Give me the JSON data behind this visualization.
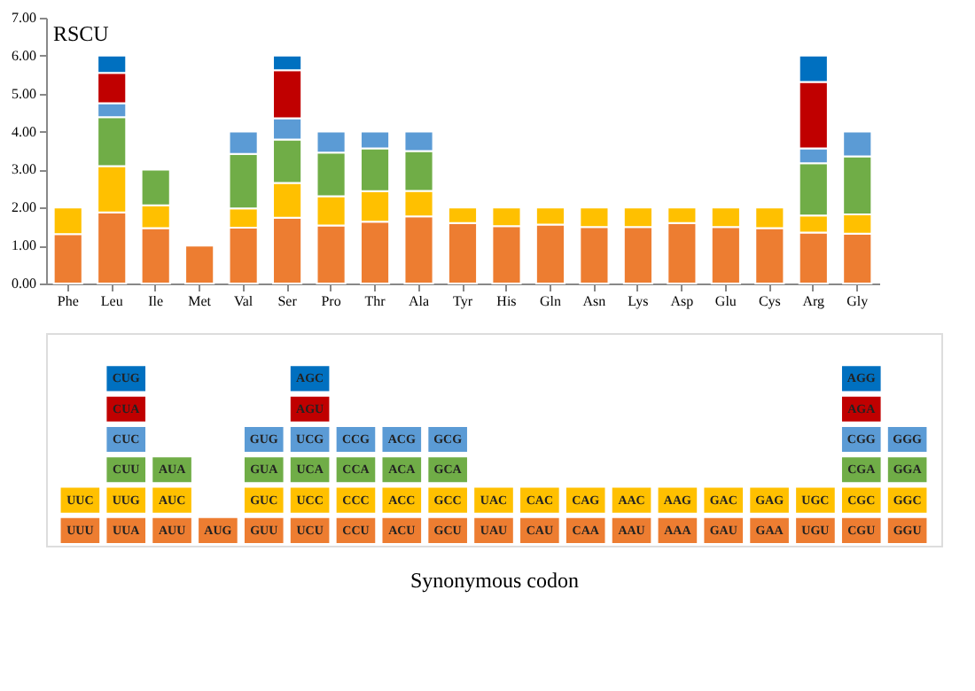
{
  "chart_data": [
    {
      "type": "bar",
      "stacked": true,
      "ylabel": "RSCU",
      "categories": [
        "Phe",
        "Leu",
        "Ile",
        "Met",
        "Val",
        "Ser",
        "Pro",
        "Thr",
        "Ala",
        "Tyr",
        "His",
        "Gln",
        "Asn",
        "Lys",
        "Asp",
        "Glu",
        "Cys",
        "Arg",
        "Gly"
      ],
      "series": [
        {
          "color": "#ed7d31",
          "values": [
            1.3,
            1.87,
            1.46,
            1.0,
            1.47,
            1.73,
            1.53,
            1.63,
            1.77,
            1.59,
            1.51,
            1.55,
            1.49,
            1.49,
            1.59,
            1.49,
            1.46,
            1.34,
            1.31
          ]
        },
        {
          "color": "#ffc000",
          "values": [
            0.7,
            1.22,
            0.6,
            null,
            0.51,
            0.92,
            0.77,
            0.8,
            0.67,
            0.41,
            0.49,
            0.45,
            0.51,
            0.51,
            0.41,
            0.51,
            0.54,
            0.45,
            0.51
          ]
        },
        {
          "color": "#70ad47",
          "values": [
            null,
            1.29,
            0.94,
            null,
            1.43,
            1.14,
            1.15,
            1.13,
            1.05,
            null,
            null,
            null,
            null,
            null,
            null,
            null,
            null,
            1.38,
            1.53
          ]
        },
        {
          "color": "#5b9bd5",
          "values": [
            null,
            0.37,
            null,
            null,
            0.59,
            0.56,
            0.55,
            0.44,
            0.51,
            null,
            null,
            null,
            null,
            null,
            null,
            null,
            null,
            0.39,
            0.65
          ]
        },
        {
          "color": "#c00000",
          "values": [
            null,
            0.8,
            null,
            null,
            null,
            1.27,
            null,
            null,
            null,
            null,
            null,
            null,
            null,
            null,
            null,
            null,
            null,
            1.75,
            null
          ]
        },
        {
          "color": "#0070c0",
          "values": [
            null,
            0.45,
            null,
            null,
            null,
            0.38,
            null,
            null,
            null,
            null,
            null,
            null,
            null,
            null,
            null,
            null,
            null,
            0.69,
            null
          ]
        }
      ],
      "ylim": [
        0,
        7
      ],
      "yticks": [
        {
          "value": 0,
          "label": "0.00"
        },
        {
          "value": 1,
          "label": "1.00"
        },
        {
          "value": 2,
          "label": "2.00"
        },
        {
          "value": 3,
          "label": "3.00"
        },
        {
          "value": 4,
          "label": "4.00"
        },
        {
          "value": 5,
          "label": "5.00"
        },
        {
          "value": 6,
          "label": "6.00"
        },
        {
          "value": 7,
          "label": "7.00"
        }
      ],
      "grid": false,
      "legend": false
    },
    {
      "type": "other",
      "xlabel": "Synonymous codon",
      "colors": [
        "#0070c0",
        "#c00000",
        "#5b9bd5",
        "#70ad47",
        "#ffc000",
        "#ed7d31"
      ],
      "cell_labels": [
        [
          null,
          "CUG",
          null,
          null,
          null,
          "AGC",
          null,
          null,
          null,
          null,
          null,
          null,
          null,
          null,
          null,
          null,
          null,
          "AGG",
          null
        ],
        [
          null,
          "CUA",
          null,
          null,
          null,
          "AGU",
          null,
          null,
          null,
          null,
          null,
          null,
          null,
          null,
          null,
          null,
          null,
          "AGA",
          null
        ],
        [
          null,
          "CUC",
          null,
          null,
          "GUG",
          "UCG",
          "CCG",
          "ACG",
          "GCG",
          null,
          null,
          null,
          null,
          null,
          null,
          null,
          null,
          "CGG",
          "GGG"
        ],
        [
          null,
          "CUU",
          "AUA",
          null,
          "GUA",
          "UCA",
          "CCA",
          "ACA",
          "GCA",
          null,
          null,
          null,
          null,
          null,
          null,
          null,
          null,
          "CGA",
          "GGA"
        ],
        [
          "UUC",
          "UUG",
          "AUC",
          null,
          "GUC",
          "UCC",
          "CCC",
          "ACC",
          "GCC",
          "UAC",
          "CAC",
          "CAG",
          "AAC",
          "AAG",
          "GAC",
          "GAG",
          "UGC",
          "CGC",
          "GGC"
        ],
        [
          "UUU",
          "UUA",
          "AUU",
          "AUG",
          "GUU",
          "UCU",
          "CCU",
          "ACU",
          "GCU",
          "UAU",
          "CAU",
          "CAA",
          "AAU",
          "AAA",
          "GAU",
          "GAA",
          "UGU",
          "CGU",
          "GGU"
        ]
      ]
    }
  ]
}
